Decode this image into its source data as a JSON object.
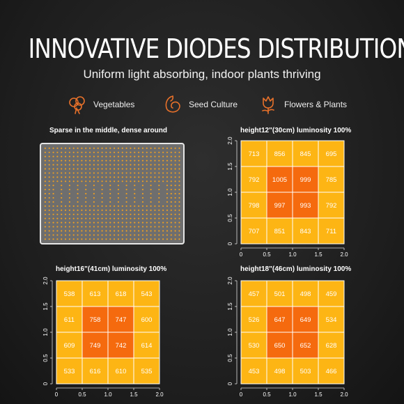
{
  "header": {
    "title": "INNOVATIVE DIODES DISTRIBUTION",
    "subtitle": "Uniform light absorbing, indoor plants thriving"
  },
  "features": [
    {
      "icon": "vegetable-icon",
      "label": "Vegetables"
    },
    {
      "icon": "seed-icon",
      "label": "Seed Culture"
    },
    {
      "icon": "flower-icon",
      "label": "Flowers & Plants"
    }
  ],
  "colors": {
    "accent": "#e8712a",
    "cell_outer": "#fdb514",
    "cell_mid": "#fd9d12",
    "cell_inner": "#f56a0e",
    "led_dot": "#f0a020",
    "board": "#6e6e6e"
  },
  "board": {
    "caption": "Sparse in the middle, dense around"
  },
  "chart_data": [
    {
      "type": "heatmap",
      "title": "height12\"(30cm)   luminosity 100%",
      "x_ticks": [
        "0",
        "0.5",
        "1.0",
        "1.5",
        "2.0"
      ],
      "y_ticks": [
        "0",
        "0.5",
        "1.0",
        "1.5",
        "2.0"
      ],
      "xlim": [
        0,
        2
      ],
      "ylim": [
        0,
        2
      ],
      "rows": [
        [
          713,
          856,
          845,
          695
        ],
        [
          792,
          1005,
          999,
          785
        ],
        [
          798,
          997,
          993,
          792
        ],
        [
          707,
          851,
          843,
          711
        ]
      ]
    },
    {
      "type": "heatmap",
      "title": "height16\"(41cm)   luminosity 100%",
      "x_ticks": [
        "0",
        "0.5",
        "1.0",
        "1.5",
        "2.0"
      ],
      "y_ticks": [
        "0",
        "0.5",
        "1.0",
        "1.5",
        "2.0"
      ],
      "xlim": [
        0,
        2
      ],
      "ylim": [
        0,
        2
      ],
      "rows": [
        [
          538,
          613,
          618,
          543
        ],
        [
          611,
          758,
          747,
          600
        ],
        [
          609,
          749,
          742,
          614
        ],
        [
          533,
          616,
          610,
          535
        ]
      ]
    },
    {
      "type": "heatmap",
      "title": "height18\"(46cm)   luminosity 100%",
      "x_ticks": [
        "0",
        "0.5",
        "1.0",
        "1.5",
        "2.0"
      ],
      "y_ticks": [
        "0",
        "0.5",
        "1.0",
        "1.5",
        "2.0"
      ],
      "xlim": [
        0,
        2
      ],
      "ylim": [
        0,
        2
      ],
      "rows": [
        [
          457,
          501,
          498,
          459
        ],
        [
          526,
          647,
          649,
          534
        ],
        [
          530,
          650,
          652,
          628
        ],
        [
          453,
          498,
          503,
          466
        ]
      ]
    }
  ]
}
